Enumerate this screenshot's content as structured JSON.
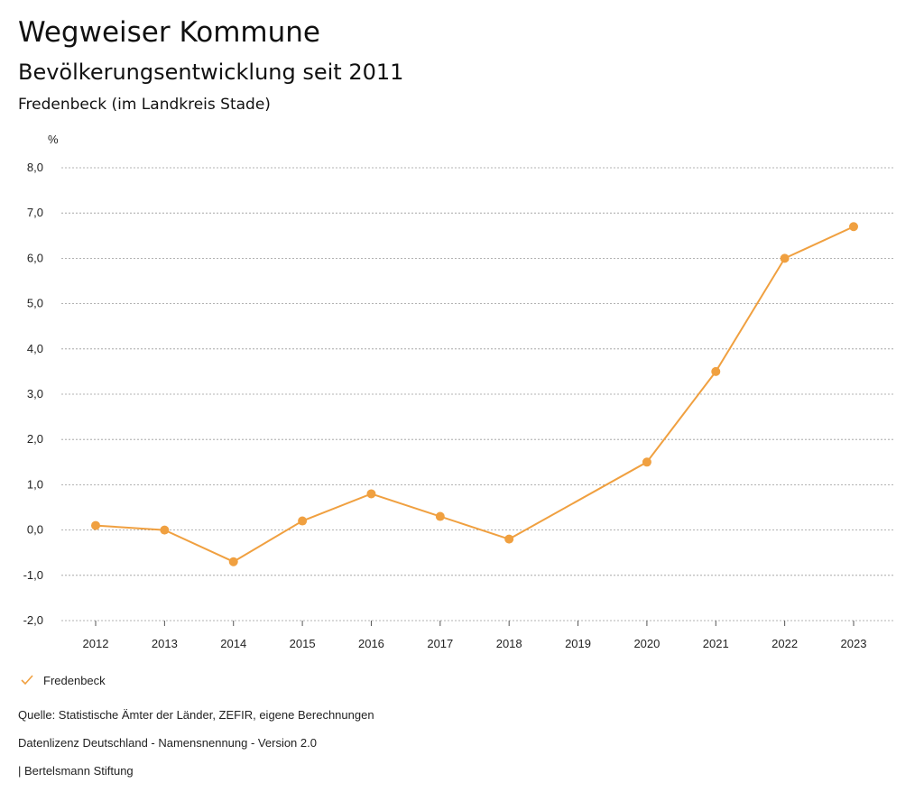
{
  "header": {
    "title": "Wegweiser Kommune",
    "subtitle": "Bevölkerungsentwicklung seit 2011",
    "place": "Fredenbeck (im Landkreis Stade)"
  },
  "colors": {
    "series": "#f0a040",
    "grid": "#9a9a9a",
    "text": "#222222"
  },
  "legend": {
    "label": "Fredenbeck",
    "icon": "check-icon"
  },
  "footer": {
    "source": "Quelle: Statistische Ämter der Länder, ZEFIR, eigene Berechnungen",
    "license": "Datenlizenz Deutschland - Namensnennung - Version 2.0",
    "publisher": "| Bertelsmann Stiftung"
  },
  "chart_data": {
    "type": "line",
    "title": "Bevölkerungsentwicklung seit 2011",
    "xlabel": "",
    "ylabel": "%",
    "ylim": [
      -2.0,
      8.0
    ],
    "yticks": [
      "8,0",
      "7,0",
      "6,0",
      "5,0",
      "4,0",
      "3,0",
      "2,0",
      "1,0",
      "0,0",
      "-1,0",
      "-2,0"
    ],
    "ytick_values": [
      8,
      7,
      6,
      5,
      4,
      3,
      2,
      1,
      0,
      -1,
      -2
    ],
    "categories": [
      "2012",
      "2013",
      "2014",
      "2015",
      "2016",
      "2017",
      "2018",
      "2019",
      "2020",
      "2021",
      "2022",
      "2023"
    ],
    "series": [
      {
        "name": "Fredenbeck",
        "values": [
          0.1,
          0.0,
          -0.7,
          0.2,
          0.8,
          0.3,
          -0.2,
          null,
          1.5,
          3.5,
          6.0,
          6.7
        ]
      }
    ],
    "grid": true,
    "legend_position": "bottom-left"
  }
}
